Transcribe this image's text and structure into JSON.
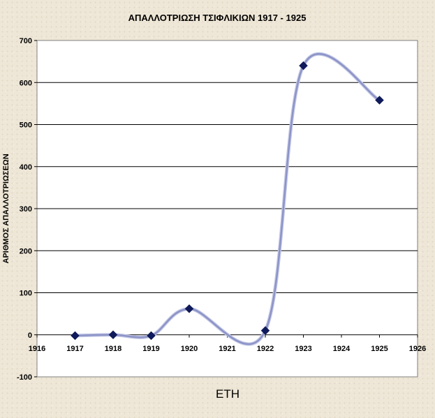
{
  "chart_data": {
    "type": "line",
    "title": "ΑΠΑΛΛΟΤΡΙΩΣΗ ΤΣΙΦΛΙΚΙΩΝ 1917 - 1925",
    "xlabel": "ΕΤΗ",
    "ylabel": "ΑΡΙΘΜΟΣ ΑΠΑΛΛΟΤΡΙΩΣΕΩΝ",
    "xlim": [
      1916,
      1926
    ],
    "ylim": [
      -100,
      700
    ],
    "x_ticks": [
      1916,
      1917,
      1918,
      1919,
      1920,
      1921,
      1922,
      1923,
      1924,
      1925,
      1926
    ],
    "y_ticks": [
      -100,
      0,
      100,
      200,
      300,
      400,
      500,
      600,
      700
    ],
    "grid": "horizontal",
    "line_style": "smoothed",
    "colors": {
      "line": "#8b93c7",
      "marker": "#0f1a5c",
      "plot_background": "#ffffff",
      "gridline": "#000000"
    },
    "series": [
      {
        "x": [
          1917,
          1918,
          1919,
          1920,
          1922,
          1923,
          1925
        ],
        "y": [
          -2,
          0,
          -2,
          62,
          10,
          640,
          558
        ]
      }
    ]
  }
}
